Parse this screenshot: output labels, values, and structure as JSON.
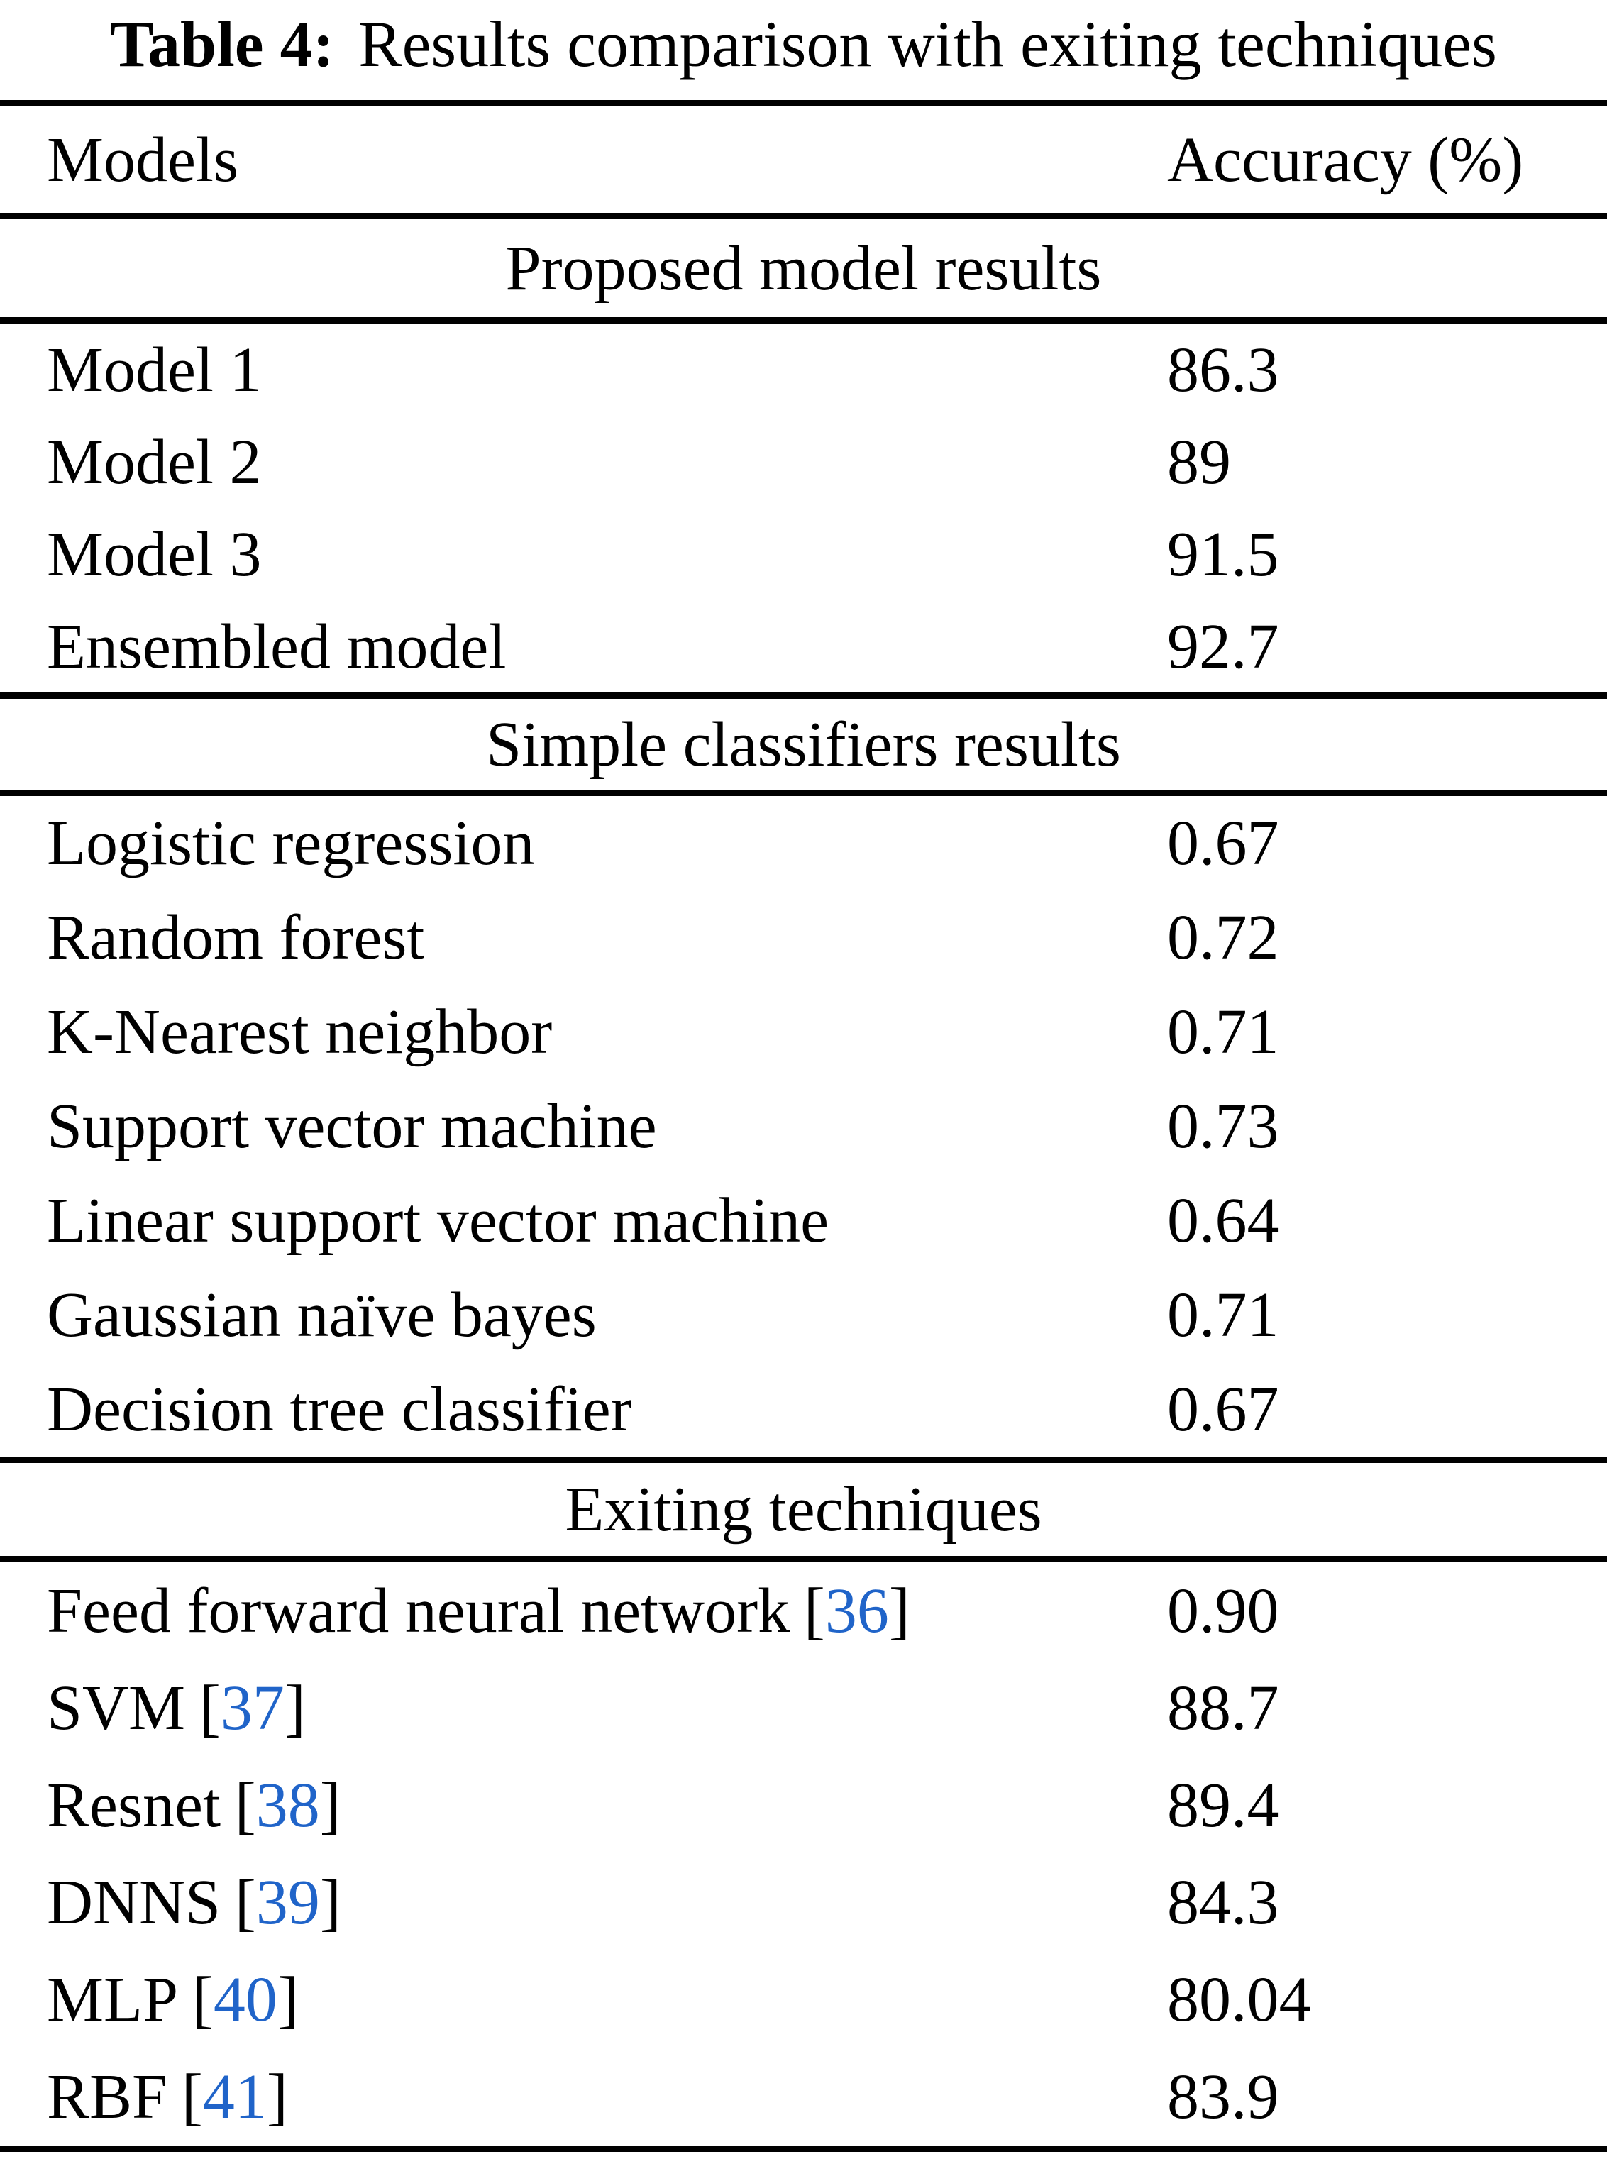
{
  "caption": {
    "label": "Table 4:",
    "text": "Results comparison with exiting techniques"
  },
  "header": {
    "models": "Models",
    "accuracy": "Accuracy (%)"
  },
  "citation": {
    "open": "[",
    "close": "]"
  },
  "colors": {
    "citation_blue": "#2064c9",
    "text": "#000000",
    "rule": "#000000",
    "background": "#ffffff"
  },
  "sections": [
    {
      "title": "Proposed model results",
      "rows": [
        {
          "model": "Model 1",
          "accuracy": "86.3"
        },
        {
          "model": "Model 2",
          "accuracy": "89"
        },
        {
          "model": "Model 3",
          "accuracy": "91.5"
        },
        {
          "model": "Ensembled model",
          "accuracy": "92.7"
        }
      ]
    },
    {
      "title": "Simple classifiers results",
      "rows": [
        {
          "model": "Logistic regression",
          "accuracy": "0.67"
        },
        {
          "model": "Random forest",
          "accuracy": "0.72"
        },
        {
          "model": "K-Nearest neighbor",
          "accuracy": "0.71"
        },
        {
          "model": "Support vector machine",
          "accuracy": "0.73"
        },
        {
          "model": "Linear support vector machine",
          "accuracy": "0.64"
        },
        {
          "model": "Gaussian naïve bayes",
          "accuracy": "0.71"
        },
        {
          "model": "Decision tree classifier",
          "accuracy": "0.67"
        }
      ]
    },
    {
      "title": "Exiting techniques",
      "rows": [
        {
          "model": "Feed forward neural network",
          "cite": "36",
          "accuracy": "0.90"
        },
        {
          "model": "SVM",
          "cite": "37",
          "accuracy": "88.7"
        },
        {
          "model": "Resnet",
          "cite": "38",
          "accuracy": "89.4"
        },
        {
          "model": "DNNS",
          "cite": "39",
          "accuracy": "84.3"
        },
        {
          "model": "MLP",
          "cite": "40",
          "accuracy": "80.04"
        },
        {
          "model": "RBF",
          "cite": "41",
          "accuracy": "83.9"
        }
      ]
    }
  ]
}
